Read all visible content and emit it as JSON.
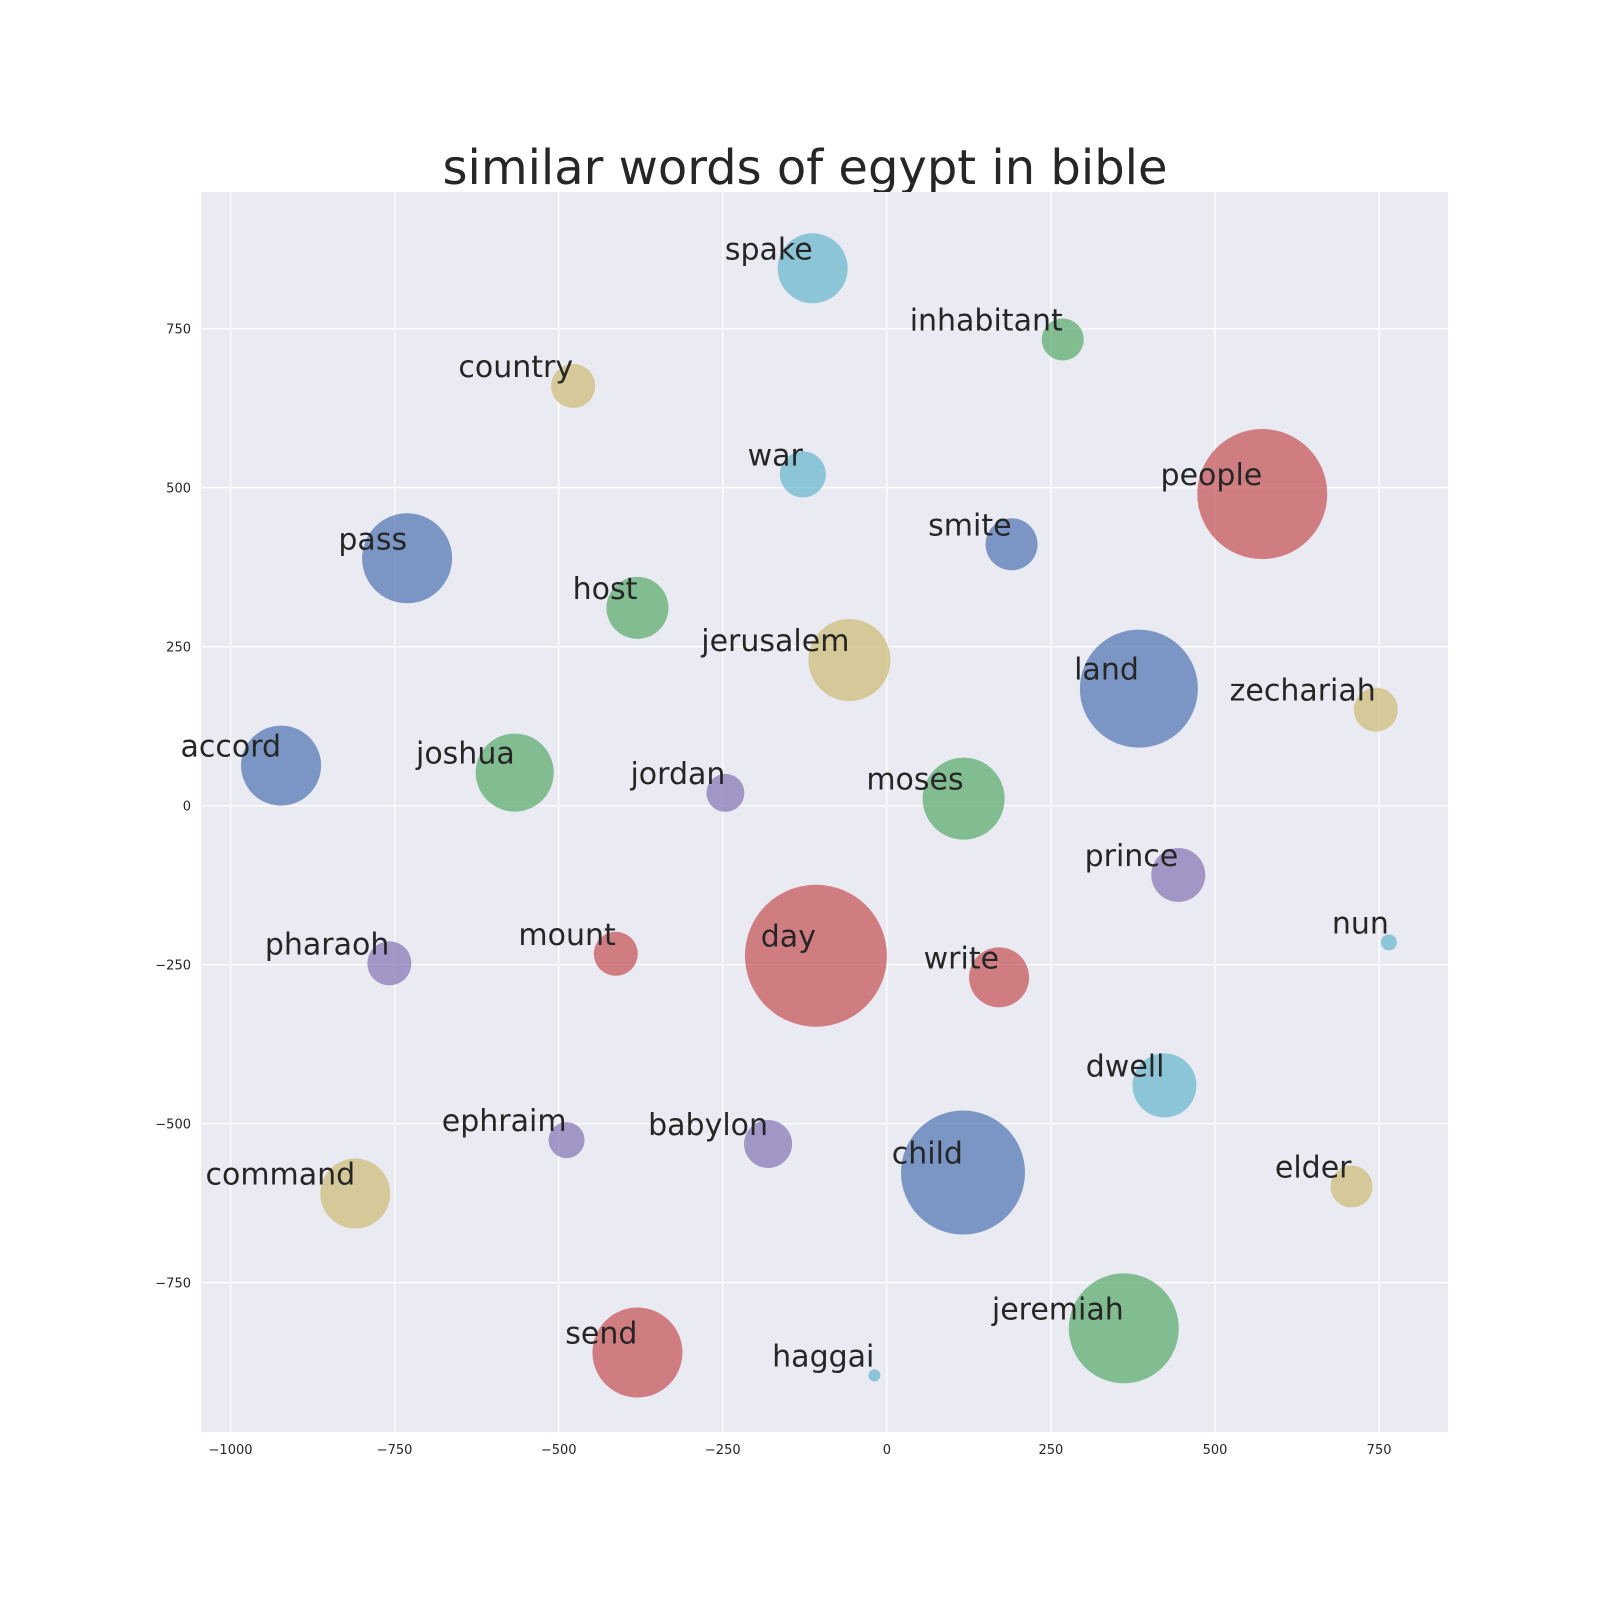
{
  "chart_data": {
    "type": "scatter",
    "title": "similar words of egypt in bible",
    "xlabel": "",
    "ylabel": "",
    "xlim": [
      -1045,
      855
    ],
    "ylim": [
      -985,
      965
    ],
    "xticks": [
      -1000,
      -750,
      -500,
      -250,
      0,
      250,
      500,
      750
    ],
    "yticks": [
      -750,
      -500,
      -250,
      0,
      250,
      500,
      750
    ],
    "xtick_labels": [
      "−1000",
      "−750",
      "−500",
      "−250",
      "0",
      "250",
      "500",
      "750"
    ],
    "ytick_labels": [
      "−750",
      "−500",
      "−250",
      "0",
      "250",
      "500",
      "750"
    ],
    "grid": true,
    "palette": {
      "blue": "#4c72b0",
      "green": "#55a868",
      "red": "#c44e52",
      "purple": "#8172b2",
      "yellow": "#ccb974",
      "cyan": "#64b5cd",
      "plot_background": "#eaeaf2",
      "grid": "#ffffff"
    },
    "points": [
      {
        "label": "spake",
        "x": -113,
        "y": 845,
        "size": 35,
        "color": "cyan"
      },
      {
        "label": "inhabitant",
        "x": 268,
        "y": 733,
        "size": 21,
        "color": "green"
      },
      {
        "label": "country",
        "x": -478,
        "y": 660,
        "size": 22,
        "color": "yellow"
      },
      {
        "label": "war",
        "x": -128,
        "y": 521,
        "size": 23,
        "color": "cyan"
      },
      {
        "label": "people",
        "x": 572,
        "y": 490,
        "size": 65,
        "color": "red"
      },
      {
        "label": "smite",
        "x": 190,
        "y": 411,
        "size": 26,
        "color": "blue"
      },
      {
        "label": "pass",
        "x": -731,
        "y": 389,
        "size": 45,
        "color": "blue"
      },
      {
        "label": "host",
        "x": -380,
        "y": 311,
        "size": 31,
        "color": "green"
      },
      {
        "label": "jerusalem",
        "x": -57,
        "y": 229,
        "size": 41,
        "color": "yellow"
      },
      {
        "label": "land",
        "x": 384,
        "y": 184,
        "size": 59,
        "color": "blue"
      },
      {
        "label": "zechariah",
        "x": 745,
        "y": 151,
        "size": 22,
        "color": "yellow"
      },
      {
        "label": "accord",
        "x": -923,
        "y": 63,
        "size": 40,
        "color": "blue"
      },
      {
        "label": "joshua",
        "x": -567,
        "y": 52,
        "size": 39,
        "color": "green"
      },
      {
        "label": "jordan",
        "x": -246,
        "y": 20,
        "size": 19,
        "color": "purple"
      },
      {
        "label": "moses",
        "x": 117,
        "y": 11,
        "size": 41,
        "color": "green"
      },
      {
        "label": "prince",
        "x": 444,
        "y": -109,
        "size": 27,
        "color": "purple"
      },
      {
        "label": "nun",
        "x": 765,
        "y": -215,
        "size": 8,
        "color": "cyan"
      },
      {
        "label": "pharaoh",
        "x": -758,
        "y": -248,
        "size": 22,
        "color": "purple"
      },
      {
        "label": "mount",
        "x": -413,
        "y": -233,
        "size": 22,
        "color": "red"
      },
      {
        "label": "day",
        "x": -108,
        "y": -236,
        "size": 71,
        "color": "red"
      },
      {
        "label": "write",
        "x": 171,
        "y": -270,
        "size": 30,
        "color": "red"
      },
      {
        "label": "dwell",
        "x": 423,
        "y": -440,
        "size": 32,
        "color": "cyan"
      },
      {
        "label": "ephraim",
        "x": -488,
        "y": -526,
        "size": 18,
        "color": "purple"
      },
      {
        "label": "babylon",
        "x": -181,
        "y": -532,
        "size": 24,
        "color": "purple"
      },
      {
        "label": "child",
        "x": 116,
        "y": -577,
        "size": 62,
        "color": "blue"
      },
      {
        "label": "command",
        "x": -810,
        "y": -610,
        "size": 35,
        "color": "yellow"
      },
      {
        "label": "elder",
        "x": 708,
        "y": -599,
        "size": 21,
        "color": "yellow"
      },
      {
        "label": "jeremiah",
        "x": 361,
        "y": -822,
        "size": 55,
        "color": "green"
      },
      {
        "label": "send",
        "x": -380,
        "y": -860,
        "size": 45,
        "color": "red"
      },
      {
        "label": "haggai",
        "x": -19,
        "y": -896,
        "size": 6,
        "color": "cyan"
      }
    ]
  }
}
